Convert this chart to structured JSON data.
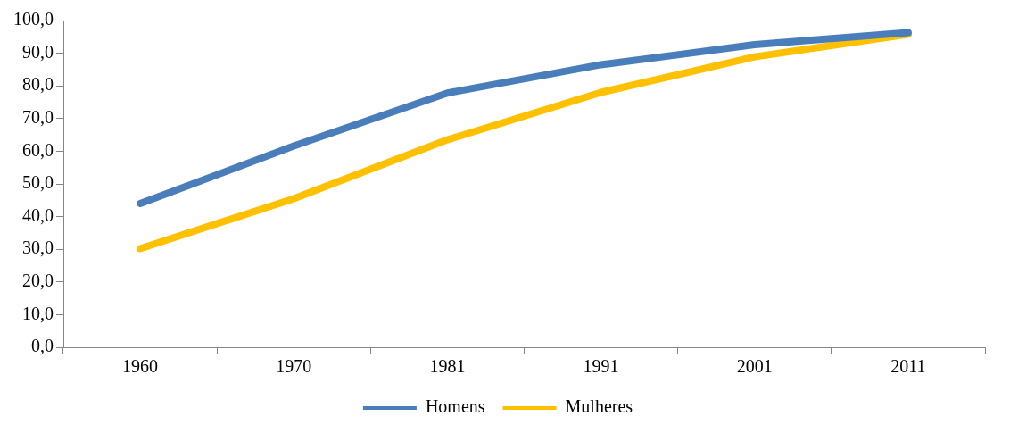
{
  "chart_data": {
    "type": "line",
    "categories": [
      "1960",
      "1970",
      "1981",
      "1991",
      "2001",
      "2011"
    ],
    "series": [
      {
        "name": "Homens",
        "color": "#4a7ebb",
        "values": [
          44.0,
          61.6,
          77.8,
          86.5,
          92.6,
          96.3
        ]
      },
      {
        "name": "Mulheres",
        "color": "#ffc000",
        "values": [
          30.2,
          45.5,
          63.5,
          78.0,
          88.9,
          95.8
        ]
      }
    ],
    "ylim": [
      0,
      100
    ],
    "yticks": [
      {
        "value": 0,
        "label": "0,0"
      },
      {
        "value": 10,
        "label": "10,0"
      },
      {
        "value": 20,
        "label": "20,0"
      },
      {
        "value": 30,
        "label": "30,0"
      },
      {
        "value": 40,
        "label": "40,0"
      },
      {
        "value": 50,
        "label": "50,0"
      },
      {
        "value": 60,
        "label": "60,0"
      },
      {
        "value": 70,
        "label": "70,0"
      },
      {
        "value": 80,
        "label": "80,0"
      },
      {
        "value": 90,
        "label": "90,0"
      },
      {
        "value": 100,
        "label": "100,0"
      }
    ],
    "grid": false,
    "legend": "bottom",
    "marker": "none",
    "line_style": "solid"
  }
}
